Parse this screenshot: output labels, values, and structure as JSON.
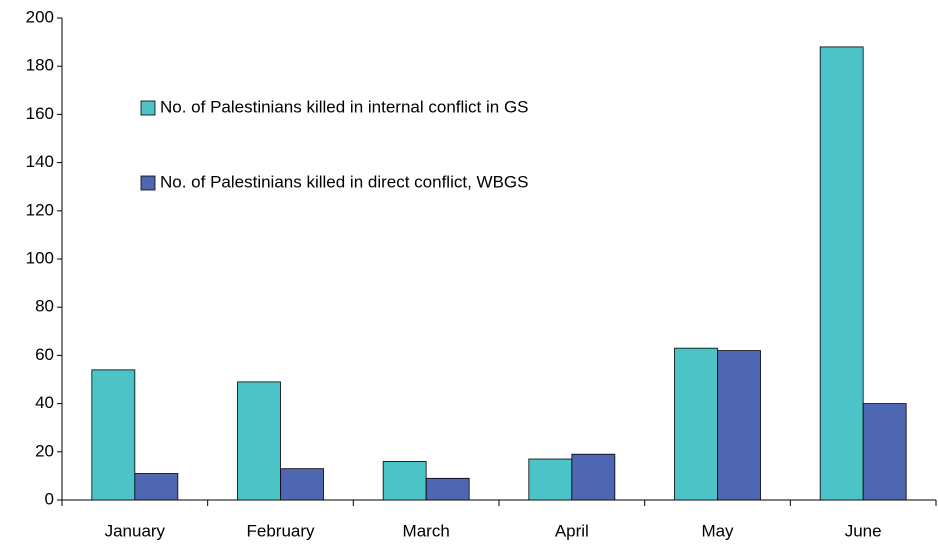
{
  "chart_data": {
    "type": "bar",
    "categories": [
      "January",
      "February",
      "March",
      "April",
      "May",
      "June"
    ],
    "series": [
      {
        "name": "No. of Palestinians killed in internal conflict in GS",
        "color": "#4cc3c6",
        "values": [
          54,
          49,
          16,
          17,
          63,
          188
        ]
      },
      {
        "name": "No. of Palestinians killed in direct conflict, WBGS",
        "color": "#4f67b3",
        "values": [
          11,
          13,
          9,
          19,
          62,
          40
        ]
      }
    ],
    "ylim": [
      0,
      200
    ],
    "yticks": [
      0,
      20,
      40,
      60,
      80,
      100,
      120,
      140,
      160,
      180,
      200
    ],
    "grid": false
  }
}
